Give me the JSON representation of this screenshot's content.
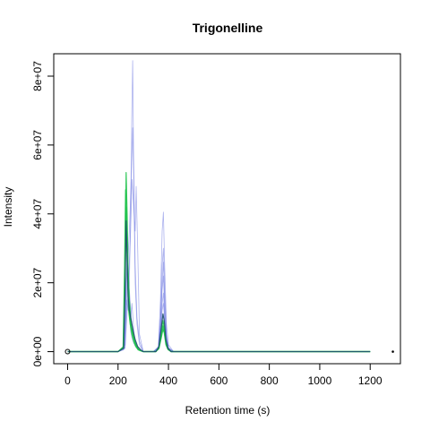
{
  "chart_data": {
    "type": "line",
    "title": "Trigonelline",
    "xlabel": "Retention time (s)",
    "ylabel": "Intensity",
    "xlim": [
      -55,
      1320
    ],
    "ylim": [
      -3500000,
      86500000
    ],
    "xticks": [
      0,
      200,
      400,
      600,
      800,
      1000,
      1200
    ],
    "xtick_labels": [
      "0",
      "200",
      "400",
      "600",
      "800",
      "1000",
      "1200"
    ],
    "yticks": [
      0,
      20000000,
      40000000,
      60000000,
      80000000
    ],
    "ytick_labels": [
      "0e+00",
      "2e+07",
      "4e+07",
      "6e+07",
      "8e+07"
    ],
    "grid": false,
    "legend": "none",
    "colors": {
      "blue_series": "#6a74e0",
      "green_series": "#1ec24a",
      "dark_series": "#1e4f6e",
      "axis": "#000000"
    },
    "series": [
      {
        "color": "blue",
        "x": [
          0,
          200,
          222,
          230,
          235,
          240,
          245,
          250,
          255,
          262,
          270,
          280,
          300,
          340,
          360,
          368,
          375,
          380,
          385,
          392,
          400,
          420,
          450,
          600,
          1200
        ],
        "y": [
          0,
          0,
          500000,
          10000000,
          28000000,
          22000000,
          12000000,
          6000000,
          4000000,
          2500000,
          1500000,
          500000,
          0,
          0,
          800000,
          5000000,
          12000000,
          14000000,
          9000000,
          3000000,
          700000,
          0,
          0,
          0,
          0
        ]
      },
      {
        "color": "blue",
        "x": [
          0,
          200,
          225,
          232,
          238,
          245,
          250,
          255,
          260,
          265,
          270,
          280,
          300,
          340,
          360,
          368,
          375,
          380,
          385,
          392,
          400,
          420,
          450,
          600,
          1200
        ],
        "y": [
          0,
          0,
          1000000,
          18000000,
          30000000,
          14000000,
          9000000,
          14000000,
          8500000,
          4000000,
          2000000,
          700000,
          0,
          0,
          1000000,
          8000000,
          18000000,
          22000000,
          12000000,
          4000000,
          1000000,
          0,
          0,
          0,
          0
        ]
      },
      {
        "color": "blue",
        "x": [
          0,
          200,
          228,
          235,
          240,
          245,
          250,
          255,
          258,
          262,
          268,
          275,
          285,
          300,
          340,
          360,
          368,
          375,
          380,
          385,
          392,
          400,
          420,
          1200
        ],
        "y": [
          0,
          0,
          2000000,
          15000000,
          12000000,
          20000000,
          40000000,
          72000000,
          84500000,
          55000000,
          20000000,
          8000000,
          2000000,
          0,
          0,
          1500000,
          15000000,
          35000000,
          40500000,
          25000000,
          8000000,
          2000000,
          0,
          0
        ]
      },
      {
        "color": "blue",
        "x": [
          0,
          200,
          225,
          232,
          238,
          245,
          250,
          258,
          262,
          268,
          275,
          285,
          300,
          340,
          360,
          368,
          375,
          380,
          385,
          392,
          400,
          420,
          1200
        ],
        "y": [
          0,
          0,
          1500000,
          20000000,
          25000000,
          35000000,
          45000000,
          65000000,
          50000000,
          25000000,
          10000000,
          3000000,
          0,
          0,
          1200000,
          10000000,
          25000000,
          30000000,
          18000000,
          5000000,
          1200000,
          0,
          0
        ]
      },
      {
        "color": "blue",
        "x": [
          0,
          200,
          228,
          235,
          240,
          245,
          250,
          255,
          262,
          268,
          272,
          278,
          285,
          300,
          340,
          360,
          368,
          375,
          380,
          385,
          392,
          400,
          420,
          1200
        ],
        "y": [
          0,
          0,
          1000000,
          10000000,
          18000000,
          26000000,
          35000000,
          50000000,
          42000000,
          35000000,
          48000000,
          30000000,
          5000000,
          0,
          0,
          1000000,
          8000000,
          20000000,
          26000000,
          15000000,
          4000000,
          1000000,
          0,
          0
        ]
      },
      {
        "color": "blue",
        "x": [
          0,
          200,
          225,
          232,
          238,
          245,
          252,
          260,
          270,
          280,
          300,
          340,
          360,
          368,
          375,
          380,
          385,
          392,
          400,
          420,
          1200
        ],
        "y": [
          0,
          0,
          800000,
          12000000,
          22000000,
          18000000,
          10000000,
          5000000,
          2500000,
          800000,
          0,
          0,
          600000,
          6000000,
          14000000,
          17000000,
          10000000,
          3000000,
          600000,
          0,
          0
        ]
      },
      {
        "color": "green",
        "x": [
          0,
          200,
          220,
          226,
          230,
          234,
          238,
          242,
          248,
          255,
          262,
          270,
          280,
          300,
          350,
          362,
          370,
          378,
          383,
          390,
          398,
          410,
          430,
          600,
          1200
        ],
        "y": [
          0,
          0,
          1000000,
          25000000,
          47000000,
          35000000,
          20000000,
          12000000,
          8000000,
          5000000,
          3000000,
          1500000,
          500000,
          0,
          0,
          1000000,
          4000000,
          7500000,
          6000000,
          2500000,
          800000,
          0,
          0,
          0,
          0
        ]
      },
      {
        "color": "green",
        "x": [
          0,
          200,
          222,
          228,
          232,
          236,
          240,
          245,
          250,
          258,
          265,
          272,
          282,
          300,
          350,
          362,
          370,
          378,
          383,
          390,
          398,
          410,
          430,
          1200
        ],
        "y": [
          0,
          0,
          1500000,
          30000000,
          52000000,
          40000000,
          24000000,
          15000000,
          10000000,
          6000000,
          3500000,
          1800000,
          600000,
          0,
          0,
          1200000,
          5000000,
          9000000,
          7000000,
          3000000,
          900000,
          0,
          0,
          0
        ]
      },
      {
        "color": "green",
        "x": [
          0,
          200,
          222,
          228,
          232,
          236,
          240,
          246,
          252,
          260,
          268,
          276,
          285,
          300,
          350,
          362,
          370,
          378,
          383,
          390,
          398,
          410,
          430,
          1200
        ],
        "y": [
          0,
          0,
          1200000,
          22000000,
          42000000,
          30000000,
          18000000,
          11000000,
          7000000,
          4500000,
          2500000,
          1200000,
          400000,
          0,
          0,
          900000,
          3500000,
          6500000,
          5500000,
          2000000,
          600000,
          0,
          0,
          0
        ]
      },
      {
        "color": "dark",
        "x": [
          0,
          200,
          222,
          228,
          232,
          236,
          240,
          245,
          252,
          260,
          268,
          278,
          290,
          300,
          350,
          362,
          370,
          378,
          383,
          390,
          398,
          410,
          430,
          1200
        ],
        "y": [
          0,
          0,
          1000000,
          18000000,
          38000000,
          28000000,
          16000000,
          12000000,
          9000000,
          6000000,
          3500000,
          1500000,
          500000,
          0,
          0,
          1500000,
          6000000,
          11000000,
          9000000,
          3500000,
          1000000,
          0,
          0,
          0
        ]
      }
    ],
    "points": [
      {
        "x": 0,
        "y": 0
      },
      {
        "x": 1290,
        "y": 0
      }
    ]
  }
}
